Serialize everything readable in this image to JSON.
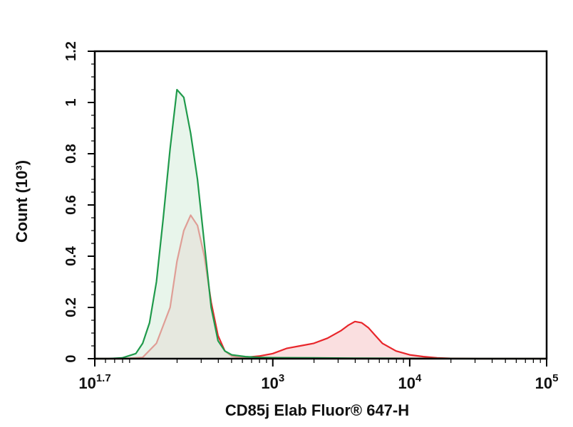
{
  "chart_data": {
    "type": "area",
    "xlabel": "CD85j Elab Fluor® 647-H",
    "ylabel": "Count (10³)",
    "x_scale": "log",
    "xlim_log10": [
      1.7,
      5
    ],
    "ylim": [
      0,
      1.2
    ],
    "x_tick_labels": [
      {
        "base": "10",
        "exp": "1.7",
        "log10": 1.7
      },
      {
        "base": "10",
        "exp": "3",
        "log10": 3
      },
      {
        "base": "10",
        "exp": "4",
        "log10": 4
      },
      {
        "base": "10",
        "exp": "5",
        "log10": 5
      }
    ],
    "y_tick_labels": [
      "0",
      "0.2",
      "0.4",
      "0.6",
      "0.8",
      "1",
      "1.2"
    ],
    "y_tick_values": [
      0,
      0.2,
      0.4,
      0.6,
      0.8,
      1.0,
      1.2
    ],
    "series": [
      {
        "color": "#e8262b",
        "fill": "#f6c9cb",
        "log10_x": [
          1.7,
          1.9,
          2.05,
          2.15,
          2.25,
          2.3,
          2.35,
          2.4,
          2.45,
          2.5,
          2.55,
          2.6,
          2.65,
          2.7,
          2.75,
          2.8,
          2.9,
          3.0,
          3.1,
          3.2,
          3.3,
          3.4,
          3.5,
          3.55,
          3.6,
          3.65,
          3.7,
          3.75,
          3.8,
          3.9,
          4.0,
          4.1,
          4.2,
          4.3,
          4.5,
          5.0
        ],
        "y": [
          0,
          0,
          0.005,
          0.06,
          0.2,
          0.38,
          0.5,
          0.56,
          0.52,
          0.4,
          0.22,
          0.09,
          0.03,
          0.01,
          0.005,
          0.005,
          0.01,
          0.02,
          0.04,
          0.05,
          0.06,
          0.08,
          0.11,
          0.13,
          0.145,
          0.14,
          0.12,
          0.09,
          0.06,
          0.03,
          0.015,
          0.008,
          0.003,
          0.001,
          0,
          0
        ]
      },
      {
        "color": "#1f9a4b",
        "fill": "#d8eedd",
        "log10_x": [
          1.7,
          1.8,
          1.9,
          2.0,
          2.05,
          2.1,
          2.15,
          2.2,
          2.25,
          2.3,
          2.35,
          2.4,
          2.45,
          2.5,
          2.55,
          2.6,
          2.65,
          2.7,
          2.8,
          2.9,
          3.0,
          3.3,
          3.6,
          4.0,
          4.5,
          5.0
        ],
        "y": [
          0,
          0,
          0.003,
          0.02,
          0.06,
          0.14,
          0.3,
          0.55,
          0.82,
          1.05,
          1.02,
          0.88,
          0.7,
          0.45,
          0.2,
          0.07,
          0.03,
          0.015,
          0.008,
          0.005,
          0.004,
          0.003,
          0.002,
          0.001,
          0,
          0
        ]
      }
    ]
  }
}
